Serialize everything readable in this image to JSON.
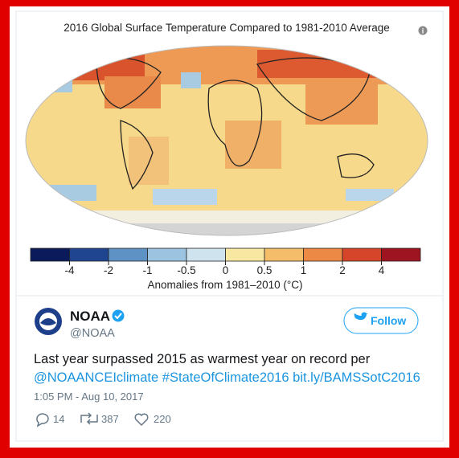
{
  "map": {
    "title": "2016 Global Surface Temperature Compared to 1981-2010 Average",
    "colorbar": {
      "colors": [
        "#0b1a5a",
        "#1f4591",
        "#5f92c4",
        "#9cc3df",
        "#cfe3ef",
        "#f7e7a1",
        "#f3bd6a",
        "#ec8a45",
        "#d6452a",
        "#9e1420"
      ],
      "ticks": [
        -4,
        -2,
        -1,
        -0.5,
        0,
        0.5,
        1,
        2,
        4
      ],
      "label": "Anomalies from 1981–2010 (°C)"
    }
  },
  "tweet": {
    "name": "NOAA",
    "handle": "@NOAA",
    "follow": "Follow",
    "text": "Last year surpassed 2015 as warmest year on record per",
    "links": [
      "@NOAANCEIclimate",
      "#StateOfClimate2016",
      "bit.ly/BAMSSotC2016"
    ],
    "time": "1:05 PM - Aug 10, 2017",
    "replies": 14,
    "retweets": 387,
    "likes": 220
  }
}
